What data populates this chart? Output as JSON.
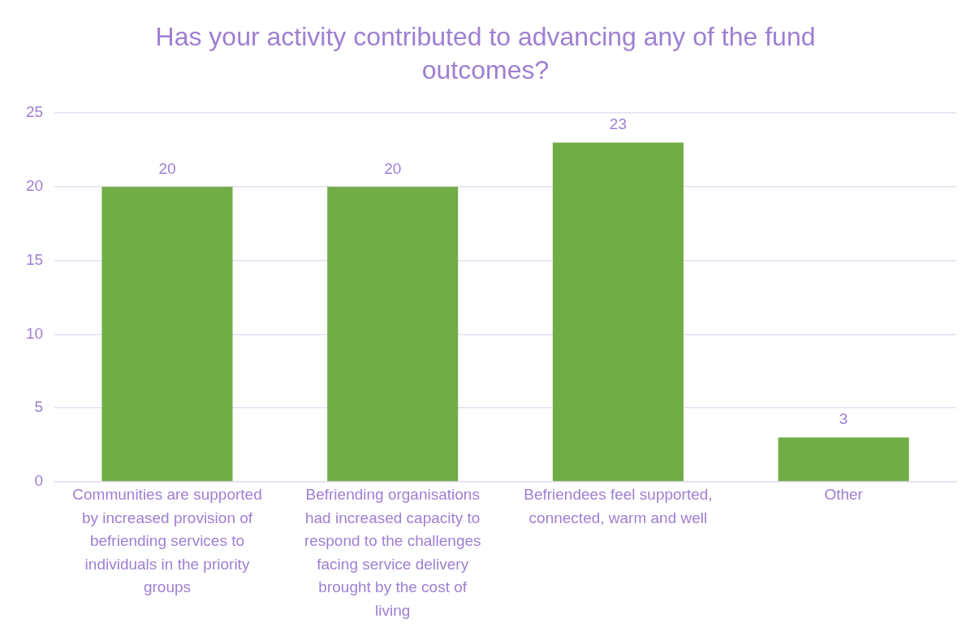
{
  "chart_data": {
    "type": "bar",
    "title": "Has your activity contributed to advancing any of the fund outcomes?",
    "categories": [
      "Communities are supported by increased provision of befriending services to individuals in the priority groups",
      "Befriending organisations had increased capacity to respond to the challenges facing service delivery brought by the cost of living",
      "Befriendees feel supported, connected, warm and well",
      "Other"
    ],
    "values": [
      20,
      20,
      23,
      3
    ],
    "color": "#70ad47",
    "ylim": [
      0,
      25
    ],
    "yticks": [
      0,
      5,
      10,
      15,
      20,
      25
    ],
    "grid": "y",
    "data_labels": true,
    "legend": false
  }
}
